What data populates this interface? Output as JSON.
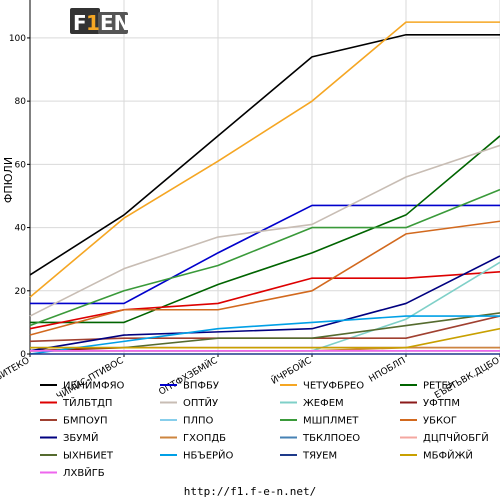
{
  "chart_data": {
    "type": "line",
    "ylabel": "ФПЮЛИ",
    "ylim": [
      0,
      112
    ],
    "yticks": [
      0,
      20,
      40,
      60,
      80,
      100
    ],
    "categories": [
      "ЯБИТЕКО",
      "ЧЙМЙС-ПТИВОС",
      "ОПТФХЗБМЙС",
      "ЙЧРБОЙС",
      "НПОБЛП",
      "ЕЪЕТЬВК.ДЦБО"
    ],
    "grid": true,
    "legend_placement": "bottom",
    "series": [
      {
        "name": "ИБНЙМФЯО",
        "color": "#000000",
        "values": [
          25,
          44,
          69,
          94,
          101,
          101
        ]
      },
      {
        "name": "ВПФБУ",
        "color": "#0000cc",
        "values": [
          16,
          16,
          32,
          47,
          47,
          47
        ]
      },
      {
        "name": "ЧЕТУФБРЕО",
        "color": "#f5a623",
        "values": [
          18,
          43,
          61,
          80,
          105,
          105
        ]
      },
      {
        "name": "РЕТЕУ",
        "color": "#006400",
        "values": [
          10,
          10,
          22,
          32,
          44,
          69
        ]
      },
      {
        "name": "ТЙЛБТДП",
        "color": "#dd0000",
        "values": [
          8,
          14,
          16,
          24,
          24,
          26
        ]
      },
      {
        "name": "ОПТЙУ",
        "color": "#c8bdb4",
        "values": [
          12,
          27,
          37,
          41,
          56,
          66
        ]
      },
      {
        "name": "ЖЕФЕМ",
        "color": "#7fd0c8",
        "values": [
          1,
          1,
          1,
          1,
          11,
          29
        ]
      },
      {
        "name": "УФТПМ",
        "color": "#8b1a1a",
        "values": [
          1,
          2,
          2,
          2,
          2,
          2
        ]
      },
      {
        "name": "БМПОУП",
        "color": "#a04030",
        "values": [
          4,
          5,
          5,
          5,
          5,
          12
        ]
      },
      {
        "name": "ПЛПО",
        "color": "#87ceeb",
        "values": [
          1,
          1,
          1,
          1,
          1,
          1
        ]
      },
      {
        "name": "МШПЛМЕТ",
        "color": "#3a9a3a",
        "values": [
          9,
          20,
          28,
          40,
          40,
          52
        ]
      },
      {
        "name": "УБКОГ",
        "color": "#d2691e",
        "values": [
          6,
          14,
          14,
          20,
          38,
          42
        ]
      },
      {
        "name": "ЗБУМЙ",
        "color": "#000080",
        "values": [
          1,
          6,
          7,
          8,
          16,
          31
        ]
      },
      {
        "name": "ГХОПДБ",
        "color": "#cd853f",
        "values": [
          1,
          1,
          1,
          1,
          2,
          2
        ]
      },
      {
        "name": "ТБКЛПОЕО",
        "color": "#4682b4",
        "values": [
          1,
          1,
          1,
          1,
          1,
          1
        ]
      },
      {
        "name": "ДЦПЧЙОБГЙ",
        "color": "#f4a7a0",
        "values": [
          1,
          1,
          1,
          1,
          1,
          1
        ]
      },
      {
        "name": "ЫХНБИЕТ",
        "color": "#556b2f",
        "values": [
          2,
          2,
          5,
          5,
          9,
          13
        ]
      },
      {
        "name": "НБЪЕРЙО",
        "color": "#00a0e6",
        "values": [
          0,
          4,
          8,
          10,
          12,
          12
        ]
      },
      {
        "name": "ТЯУЕМ",
        "color": "#1e3a8a",
        "values": [
          0,
          0,
          0,
          0,
          0,
          0
        ]
      },
      {
        "name": "МБФЙЖЙ",
        "color": "#c8a000",
        "values": [
          2,
          2,
          2,
          2,
          2,
          8
        ]
      },
      {
        "name": "ЛХВЙГБ",
        "color": "#ee66ee",
        "values": [
          1,
          1,
          1,
          1,
          1,
          1
        ]
      }
    ]
  },
  "footer": {
    "url": "http://f1.f-e-n.net/"
  },
  "logo": {
    "text": "F1EN"
  }
}
